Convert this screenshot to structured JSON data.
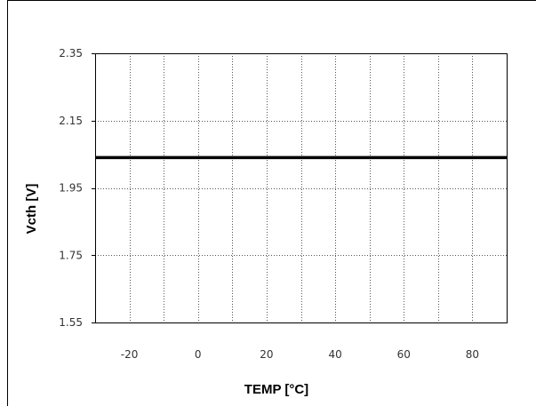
{
  "chart_data": {
    "type": "line",
    "title": "",
    "xlabel": "TEMP [°C]",
    "ylabel": "Vcth [V]",
    "xlim": [
      -30,
      90
    ],
    "ylim": [
      1.55,
      2.35
    ],
    "x_ticks": [
      -20,
      0,
      20,
      40,
      60,
      80
    ],
    "x_tick_labels": [
      "-20",
      "0",
      "20",
      "40",
      "60",
      "80"
    ],
    "y_ticks": [
      1.55,
      1.75,
      1.95,
      2.15,
      2.35
    ],
    "y_tick_labels": [
      "1.55",
      "1.75",
      "1.95",
      "2.15",
      "2.35"
    ],
    "x_minor_gridlines": [
      -20,
      -10,
      0,
      10,
      20,
      30,
      40,
      50,
      60,
      70,
      80
    ],
    "grid": true,
    "series": [
      {
        "x": [
          -30,
          90
        ],
        "y": [
          2.04,
          2.04
        ],
        "color": "#000000"
      }
    ]
  }
}
